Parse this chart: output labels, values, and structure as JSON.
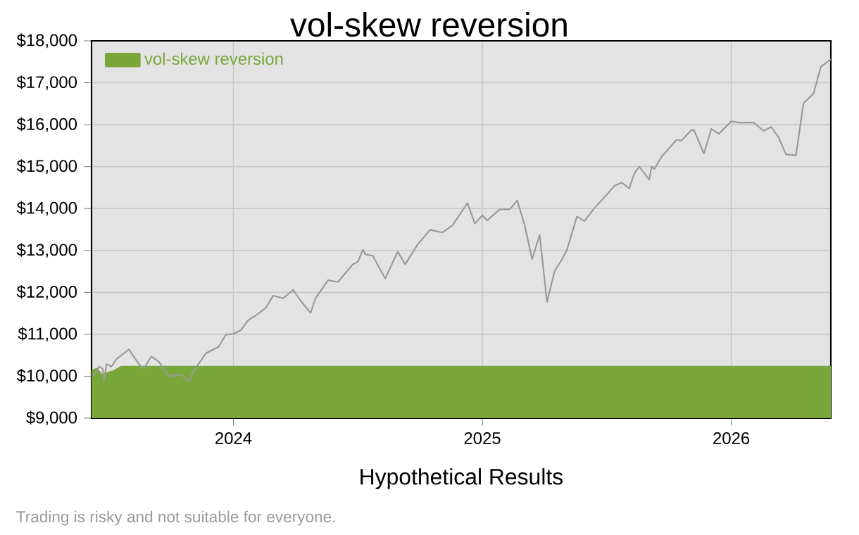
{
  "chart_data": {
    "type": "line",
    "title": "vol-skew reversion",
    "xlabel": "Hypothetical Results",
    "annotations": [
      "Trading is risky and not suitable for everyone."
    ],
    "xlim": [
      2023.43,
      2026.4
    ],
    "ylim": [
      9000,
      18000
    ],
    "xticks": [
      2024,
      2025,
      2026
    ],
    "yticks": [
      {
        "value": 9000,
        "label": "$9,000"
      },
      {
        "value": 10000,
        "label": "$10,000"
      },
      {
        "value": 11000,
        "label": "$11,000"
      },
      {
        "value": 12000,
        "label": "$12,000"
      },
      {
        "value": 13000,
        "label": "$13,000"
      },
      {
        "value": 14000,
        "label": "$14,000"
      },
      {
        "value": 15000,
        "label": "$15,000"
      },
      {
        "value": 16000,
        "label": "$16,000"
      },
      {
        "value": 17000,
        "label": "$17,000"
      },
      {
        "value": 18000,
        "label": "$18,000"
      }
    ],
    "grid": true,
    "legend": "top left",
    "series": [
      {
        "name": "vol-skew reversion",
        "type": "area",
        "color": "#7aa73a",
        "x": [
          2023.43,
          2023.45,
          2023.47,
          2023.49,
          2023.52,
          2023.55,
          2023.58,
          2026.4
        ],
        "values": [
          10100,
          10150,
          10000,
          10050,
          10100,
          10200,
          10200,
          10200
        ]
      },
      {
        "color": "#999999",
        "x": [
          2023.44,
          2023.46,
          2023.475,
          2023.48,
          2023.49,
          2023.51,
          2023.53,
          2023.58,
          2023.62,
          2023.64,
          2023.67,
          2023.7,
          2023.74,
          2023.79,
          2023.82,
          2023.84,
          2023.89,
          2023.94,
          2023.97,
          2024.0,
          2024.03,
          2024.06,
          2024.09,
          2024.13,
          2024.16,
          2024.2,
          2024.24,
          2024.27,
          2024.31,
          2024.33,
          2024.38,
          2024.42,
          2024.48,
          2024.5,
          2024.52,
          2024.53,
          2024.56,
          2024.61,
          2024.66,
          2024.69,
          2024.74,
          2024.79,
          2024.84,
          2024.88,
          2024.94,
          2024.97,
          2025.0,
          2025.02,
          2025.07,
          2025.11,
          2025.14,
          2025.17,
          2025.2,
          2025.23,
          2025.26,
          2025.29,
          2025.32,
          2025.34,
          2025.38,
          2025.41,
          2025.45,
          2025.5,
          2025.53,
          2025.56,
          2025.59,
          2025.61,
          2025.63,
          2025.67,
          2025.68,
          2025.69,
          2025.72,
          2025.78,
          2025.8,
          2025.84,
          2025.85,
          2025.89,
          2025.92,
          2025.95,
          2026.0,
          2026.03,
          2026.09,
          2026.13,
          2026.16,
          2026.19,
          2026.22,
          2026.26,
          2026.29,
          2026.33,
          2026.36,
          2026.4
        ],
        "values": [
          10000,
          10230,
          10180,
          9880,
          10290,
          10230,
          10410,
          10640,
          10290,
          10180,
          10470,
          10350,
          10000,
          10040,
          9880,
          10120,
          10550,
          10700,
          10990,
          11010,
          11100,
          11340,
          11450,
          11630,
          11920,
          11860,
          12060,
          11800,
          11510,
          11860,
          12290,
          12250,
          12670,
          12730,
          13020,
          12910,
          12870,
          12330,
          12970,
          12670,
          13140,
          13490,
          13430,
          13600,
          14130,
          13640,
          13840,
          13720,
          13980,
          13980,
          14190,
          13600,
          12790,
          13370,
          11770,
          12500,
          12790,
          13020,
          13810,
          13700,
          14010,
          14330,
          14540,
          14620,
          14480,
          14830,
          15000,
          14690,
          15000,
          14940,
          15230,
          15640,
          15620,
          15870,
          15870,
          15310,
          15900,
          15780,
          16080,
          16050,
          16050,
          15850,
          15950,
          15700,
          15290,
          15270,
          16510,
          16740,
          17380,
          17560
        ]
      }
    ]
  }
}
